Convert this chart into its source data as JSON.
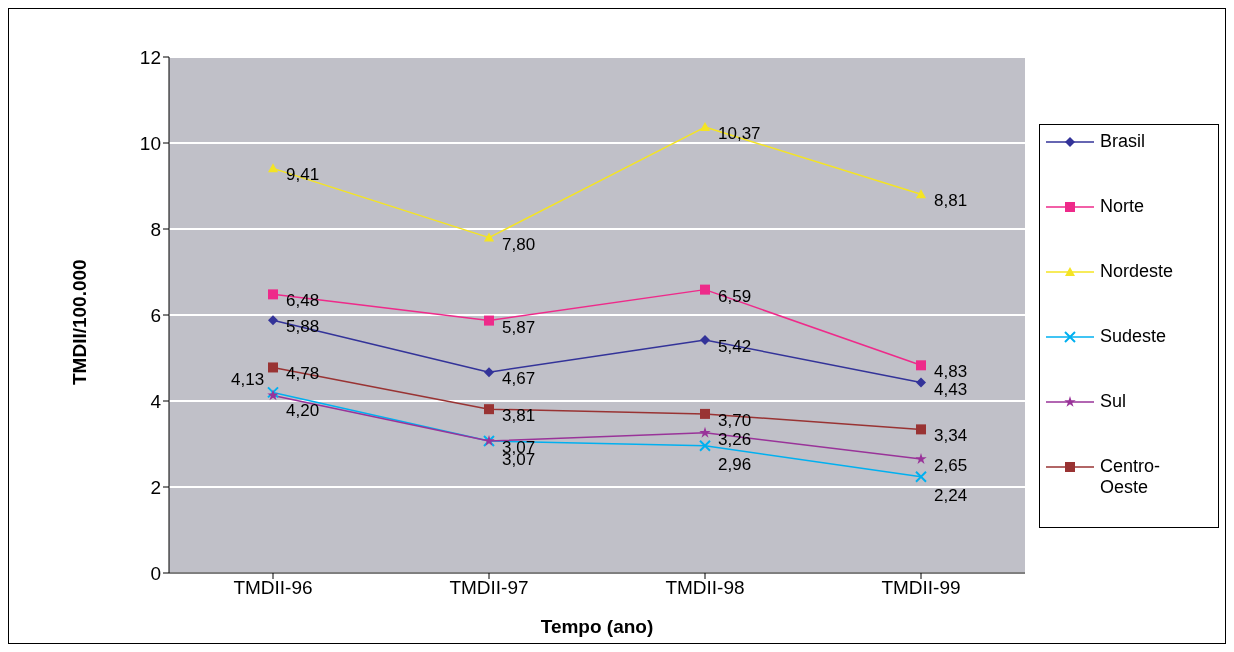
{
  "chart_data": {
    "type": "line",
    "xlabel": "Tempo (ano)",
    "ylabel": "TMDII/100.000",
    "categories": [
      "TMDII-96",
      "TMDII-97",
      "TMDII-98",
      "TMDII-99"
    ],
    "series": [
      {
        "name": "Brasil",
        "color": "#333399",
        "marker": "diamond",
        "values": [
          5.88,
          4.67,
          5.42,
          4.43
        ],
        "value_labels": [
          "5,88",
          "4,67",
          "5,42",
          "4,43"
        ]
      },
      {
        "name": "Norte",
        "color": "#ee2a8a",
        "marker": "square",
        "values": [
          6.48,
          5.87,
          6.59,
          4.83
        ],
        "value_labels": [
          "6,48",
          "5,87",
          "6,59",
          "4,83"
        ]
      },
      {
        "name": "Nordeste",
        "color": "#f4e423",
        "marker": "triangle",
        "values": [
          9.41,
          7.8,
          10.37,
          8.81
        ],
        "value_labels": [
          "9,41",
          "7,80",
          "10,37",
          "8,81"
        ]
      },
      {
        "name": "Sudeste",
        "color": "#00b0f0",
        "marker": "cross",
        "values": [
          4.2,
          3.07,
          2.96,
          2.24
        ],
        "value_labels": [
          "4,20",
          "3,07",
          "2,96",
          "2,24"
        ]
      },
      {
        "name": "Sul",
        "color": "#993399",
        "marker": "star",
        "values": [
          4.13,
          3.07,
          3.26,
          2.65
        ],
        "value_labels": [
          "4,13",
          "3,07",
          "3,26",
          "2,65"
        ]
      },
      {
        "name": "Centro-Oeste",
        "color": "#993333",
        "marker": "square",
        "values": [
          4.78,
          3.81,
          3.7,
          3.34
        ],
        "value_labels": [
          "4,78",
          "3,81",
          "3,70",
          "3,34"
        ]
      }
    ],
    "ylim": [
      0,
      12
    ],
    "yticks": [
      0,
      2,
      4,
      6,
      8,
      10,
      12
    ],
    "grid": "y",
    "legend": "right",
    "line_style": "solid"
  }
}
